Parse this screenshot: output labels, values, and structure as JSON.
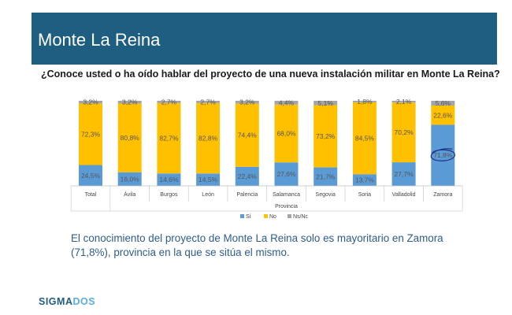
{
  "header": {
    "title": "Monte La Reina"
  },
  "question": "¿Conoce usted o ha oído hablar del proyecto de una nueva instalación militar en Monte La Reina?",
  "summary": "El conocimiento del proyecto de Monte La Reina solo es mayoritario en Zamora (71,8%), provincia en la que se sitúa el mismo.",
  "logo": {
    "part1": "SIGMA",
    "part2": "DOS"
  },
  "colors": {
    "header_bg": "#1e5e80",
    "si": "#5b9bd5",
    "no": "#ffc000",
    "nsnc": "#a5a5a5"
  },
  "chart_data": {
    "type": "bar",
    "stacked": true,
    "percent": true,
    "categories": [
      "Total",
      "Ávila",
      "Burgos",
      "León",
      "Palencia",
      "Salamanca",
      "Segovia",
      "Soria",
      "Valladolid",
      "Zamora"
    ],
    "labels": [
      "24,5%",
      "16,0%",
      "14,6%",
      "14,5%",
      "22,4%",
      "27,6%",
      "21,7%",
      "13,7%",
      "27,7%",
      "71,8%"
    ],
    "xlabel": "Provincia",
    "ylim": [
      0,
      100
    ],
    "legend_position": "bottom",
    "series": [
      {
        "name": "Sí",
        "color": "#5b9bd5",
        "values": [
          24.5,
          16.0,
          14.6,
          14.5,
          22.4,
          27.6,
          21.7,
          13.7,
          27.7,
          71.8
        ],
        "labels": [
          "24,5%",
          "16,0%",
          "14,6%",
          "14,5%",
          "22,4%",
          "27,6%",
          "21,7%",
          "13,7%",
          "27,7%",
          "71,8%"
        ]
      },
      {
        "name": "No",
        "color": "#ffc000",
        "values": [
          72.3,
          80.8,
          82.7,
          82.8,
          74.4,
          68.0,
          73.2,
          84.5,
          70.2,
          22.6
        ],
        "labels": [
          "72,3%",
          "80,8%",
          "82,7%",
          "82,8%",
          "74,4%",
          "68,0%",
          "73,2%",
          "84,5%",
          "70,2%",
          "22,6%"
        ]
      },
      {
        "name": "Ns/Nc",
        "color": "#a5a5a5",
        "values": [
          3.2,
          3.2,
          2.7,
          2.7,
          3.2,
          4.4,
          5.1,
          1.8,
          2.1,
          5.6
        ],
        "labels": [
          "3,2%",
          "3,2%",
          "2,7%",
          "2,7%",
          "3,2%",
          "4,4%",
          "5,1%",
          "1,8%",
          "2,1%",
          "5,6%"
        ]
      }
    ],
    "annotation": {
      "category": "Zamora",
      "series": "Sí",
      "style": "hand-drawn circle"
    }
  }
}
